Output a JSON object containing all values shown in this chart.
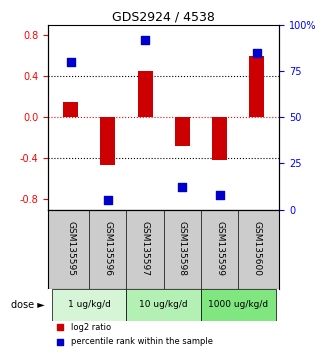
{
  "title": "GDS2924 / 4538",
  "samples": [
    "GSM135595",
    "GSM135596",
    "GSM135597",
    "GSM135598",
    "GSM135599",
    "GSM135600"
  ],
  "log2_ratio": [
    0.15,
    -0.47,
    0.45,
    -0.28,
    -0.42,
    0.6
  ],
  "percentile": [
    80,
    5,
    92,
    12,
    8,
    85
  ],
  "doses": [
    "1 ug/kg/d",
    "1 ug/kg/d",
    "10 ug/kg/d",
    "10 ug/kg/d",
    "1000 ug/kg/d",
    "1000 ug/kg/d"
  ],
  "dose_groups": [
    {
      "label": "1 ug/kg/d",
      "start": 0,
      "end": 2,
      "color": "#d6f5d6"
    },
    {
      "label": "10 ug/kg/d",
      "start": 2,
      "end": 4,
      "color": "#b3f0b3"
    },
    {
      "label": "1000 ug/kg/d",
      "start": 4,
      "end": 6,
      "color": "#80e680"
    }
  ],
  "bar_color": "#cc0000",
  "dot_color": "#0000cc",
  "ylim_left": [
    -0.9,
    0.9
  ],
  "ylim_right": [
    0,
    100
  ],
  "yticks_left": [
    -0.8,
    -0.4,
    0.0,
    0.4,
    0.8
  ],
  "yticks_right": [
    0,
    25,
    50,
    75,
    100
  ],
  "hlines": [
    0.4,
    0.0,
    -0.4
  ],
  "hline_styles": [
    "dotted",
    "dashed_red",
    "dotted"
  ],
  "bar_width": 0.4,
  "dot_size": 30,
  "background_color": "#ffffff",
  "plot_bg_color": "#ffffff",
  "legend_items": [
    {
      "label": "log2 ratio",
      "color": "#cc0000",
      "marker": "s"
    },
    {
      "label": "percentile rank within the sample",
      "color": "#0000cc",
      "marker": "s"
    }
  ]
}
